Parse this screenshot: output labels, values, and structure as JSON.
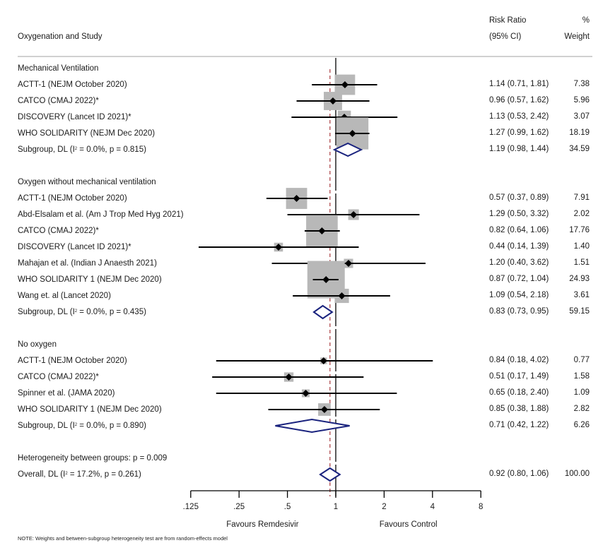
{
  "header": {
    "study_col": "Oxygenation and Study",
    "rr_col_line1": "Risk Ratio",
    "rr_col_line2": "(95% CI)",
    "wt_col_line1": "%",
    "wt_col_line2": "Weight"
  },
  "colors": {
    "box": "#b8b8b8",
    "point": "#000000",
    "ci_line": "#000000",
    "diamond": "#1a237e",
    "overall_line": "#b5565a",
    "divider": "#d0d0d0"
  },
  "chart_data": {
    "type": "forest",
    "xscale": "log",
    "xlim": [
      0.125,
      8
    ],
    "xticks": [
      0.125,
      0.25,
      0.5,
      1,
      2,
      4,
      8
    ],
    "xtick_labels": [
      ".125",
      ".25",
      ".5",
      "1",
      "2",
      "4",
      "8"
    ],
    "xlabel_left": "Favours Remdesivir",
    "xlabel_right": "Favours Control",
    "null_value": 1,
    "overall_line_value": 0.92,
    "note": "NOTE: Weights and between-subgroup heterogeneity test are from random-effects model",
    "groups": [
      {
        "name": "Mechanical Ventilation",
        "studies": [
          {
            "label": "ACTT-1 (NEJM October 2020)",
            "rr": 1.14,
            "lo": 0.71,
            "hi": 1.81,
            "text": "1.14 (0.71, 1.81)",
            "weight": 7.38,
            "weight_text": "7.38"
          },
          {
            "label": "CATCO (CMAJ 2022)*",
            "rr": 0.96,
            "lo": 0.57,
            "hi": 1.62,
            "text": "0.96 (0.57, 1.62)",
            "weight": 5.96,
            "weight_text": "5.96"
          },
          {
            "label": "DISCOVERY (Lancet ID 2021)*",
            "rr": 1.13,
            "lo": 0.53,
            "hi": 2.42,
            "text": "1.13 (0.53, 2.42)",
            "weight": 3.07,
            "weight_text": "3.07"
          },
          {
            "label": "WHO SOLIDARITY (NEJM Dec 2020)",
            "rr": 1.27,
            "lo": 0.99,
            "hi": 1.62,
            "text": "1.27 (0.99, 1.62)",
            "weight": 18.19,
            "weight_text": "18.19"
          }
        ],
        "subgroup": {
          "label_pre": "Subgroup, DL (I",
          "label_sup": "2",
          "label_post": " = 0.0%, p = 0.815)",
          "rr": 1.19,
          "lo": 0.98,
          "hi": 1.44,
          "text": "1.19 (0.98, 1.44)",
          "weight_text": "34.59"
        }
      },
      {
        "name": "Oxygen without mechanical ventilation",
        "studies": [
          {
            "label": "ACTT-1 (NEJM October 2020)",
            "rr": 0.57,
            "lo": 0.37,
            "hi": 0.89,
            "text": "0.57 (0.37, 0.89)",
            "weight": 7.91,
            "weight_text": "7.91"
          },
          {
            "label": "Abd-Elsalam et al. (Am J Trop Med Hyg 2021)",
            "rr": 1.29,
            "lo": 0.5,
            "hi": 3.32,
            "text": "1.29 (0.50, 3.32)",
            "weight": 2.02,
            "weight_text": "2.02"
          },
          {
            "label": "CATCO (CMAJ 2022)*",
            "rr": 0.82,
            "lo": 0.64,
            "hi": 1.06,
            "text": "0.82 (0.64, 1.06)",
            "weight": 17.76,
            "weight_text": "17.76"
          },
          {
            "label": "DISCOVERY (Lancet ID 2021)*",
            "rr": 0.44,
            "lo": 0.14,
            "hi": 1.39,
            "text": "0.44 (0.14, 1.39)",
            "weight": 1.4,
            "weight_text": "1.40"
          },
          {
            "label": "Mahajan et al. (Indian J Anaesth 2021)",
            "rr": 1.2,
            "lo": 0.4,
            "hi": 3.62,
            "text": "1.20 (0.40, 3.62)",
            "weight": 1.51,
            "weight_text": "1.51"
          },
          {
            "label": "WHO SOLIDARITY 1 (NEJM Dec 2020)",
            "rr": 0.87,
            "lo": 0.72,
            "hi": 1.04,
            "text": "0.87 (0.72, 1.04)",
            "weight": 24.93,
            "weight_text": "24.93"
          },
          {
            "label": "Wang et. al (Lancet 2020)",
            "rr": 1.09,
            "lo": 0.54,
            "hi": 2.18,
            "text": "1.09 (0.54, 2.18)",
            "weight": 3.61,
            "weight_text": "3.61"
          }
        ],
        "subgroup": {
          "label_pre": "Subgroup, DL (I",
          "label_sup": "2",
          "label_post": " = 0.0%, p = 0.435)",
          "rr": 0.83,
          "lo": 0.73,
          "hi": 0.95,
          "text": "0.83 (0.73, 0.95)",
          "weight_text": "59.15"
        }
      },
      {
        "name": "No oxygen",
        "studies": [
          {
            "label": "ACTT-1 (NEJM October 2020)",
            "rr": 0.84,
            "lo": 0.18,
            "hi": 4.02,
            "text": "0.84 (0.18, 4.02)",
            "weight": 0.77,
            "weight_text": "0.77"
          },
          {
            "label": "CATCO (CMAJ 2022)*",
            "rr": 0.51,
            "lo": 0.17,
            "hi": 1.49,
            "text": "0.51 (0.17, 1.49)",
            "weight": 1.58,
            "weight_text": "1.58"
          },
          {
            "label": "Spinner et al. (JAMA 2020)",
            "rr": 0.65,
            "lo": 0.18,
            "hi": 2.4,
            "text": "0.65 (0.18, 2.40)",
            "weight": 1.09,
            "weight_text": "1.09"
          },
          {
            "label": "WHO SOLIDARITY 1 (NEJM Dec 2020)",
            "rr": 0.85,
            "lo": 0.38,
            "hi": 1.88,
            "text": "0.85 (0.38, 1.88)",
            "weight": 2.82,
            "weight_text": "2.82"
          }
        ],
        "subgroup": {
          "label_pre": "Subgroup, DL (I",
          "label_sup": "2",
          "label_post": " = 0.0%, p = 0.890)",
          "rr": 0.71,
          "lo": 0.42,
          "hi": 1.22,
          "text": "0.71 (0.42, 1.22)",
          "weight_text": "6.26"
        }
      }
    ],
    "heterogeneity": "Heterogeneity between groups: p = 0.009",
    "overall": {
      "label_pre": "Overall, DL (I",
      "label_sup": "2",
      "label_post": " = 17.2%, p = 0.261)",
      "rr": 0.92,
      "lo": 0.8,
      "hi": 1.06,
      "text": "0.92 (0.80, 1.06)",
      "weight_text": "100.00"
    }
  }
}
